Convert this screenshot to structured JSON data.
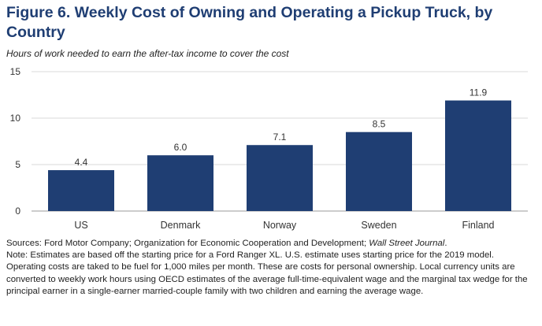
{
  "title": "Figure 6. Weekly Cost of Owning and Operating a Pickup Truck, by Country",
  "subtitle": "Hours of work needed to earn the after-tax income to cover the cost",
  "sources_prefix": "Sources: Ford Motor Company; Organization for Economic Cooperation and Development; ",
  "sources_italic": "Wall Street Journal",
  "sources_suffix": ".",
  "note": "Note: Estimates are based off the starting price for a Ford Ranger XL. U.S. estimate uses starting price for the 2019 model. Operating costs are taked to be fuel for 1,000 miles per month. These are costs for personal ownership. Local currency units are converted to weekly work hours using OECD estimates of the average full-time-equivalent wage and the marginal tax wedge for the principal earner in a single-earner married-couple family with two children and earning the average wage.",
  "chart_data": {
    "type": "bar",
    "categories": [
      "US",
      "Denmark",
      "Norway",
      "Sweden",
      "Finland"
    ],
    "values": [
      4.4,
      6.0,
      7.1,
      8.5,
      11.9
    ],
    "value_labels": [
      "4.4",
      "6.0",
      "7.1",
      "8.5",
      "11.9"
    ],
    "ylim": [
      0,
      15
    ],
    "yticks": [
      0,
      5,
      10,
      15
    ],
    "grid": true,
    "bar_color": "#1f3e73",
    "grid_color": "#d9d9d9"
  }
}
